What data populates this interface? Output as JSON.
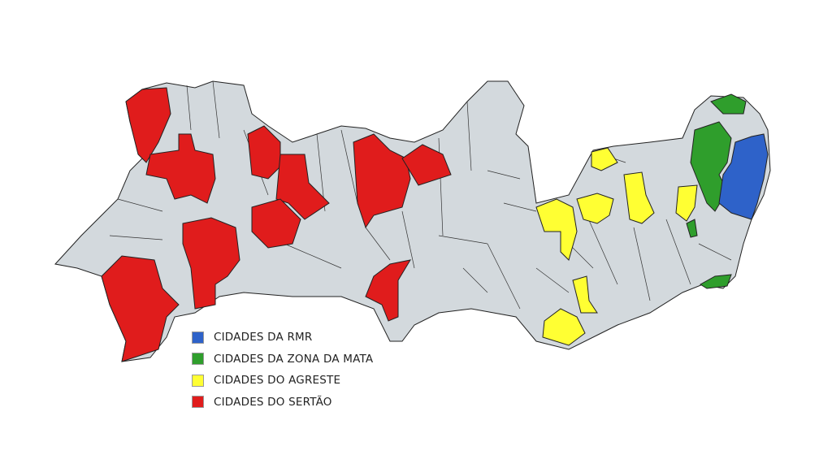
{
  "map": {
    "colors": {
      "base": "#d3d9dd",
      "border": "#222222",
      "rmr": "#2e62c9",
      "zona_da_mata": "#2f9e2c",
      "agreste": "#ffff33",
      "sertao": "#e01c1c"
    }
  },
  "legend": {
    "items": [
      {
        "label": "CIDADES DA RMR",
        "color": "#2e62c9"
      },
      {
        "label": "CIDADES DA ZONA DA MATA",
        "color": "#2f9e2c"
      },
      {
        "label": "CIDADES DO AGRESTE",
        "color": "#ffff33"
      },
      {
        "label": "CIDADES DO SERTÃO",
        "color": "#e01c1c"
      }
    ]
  }
}
